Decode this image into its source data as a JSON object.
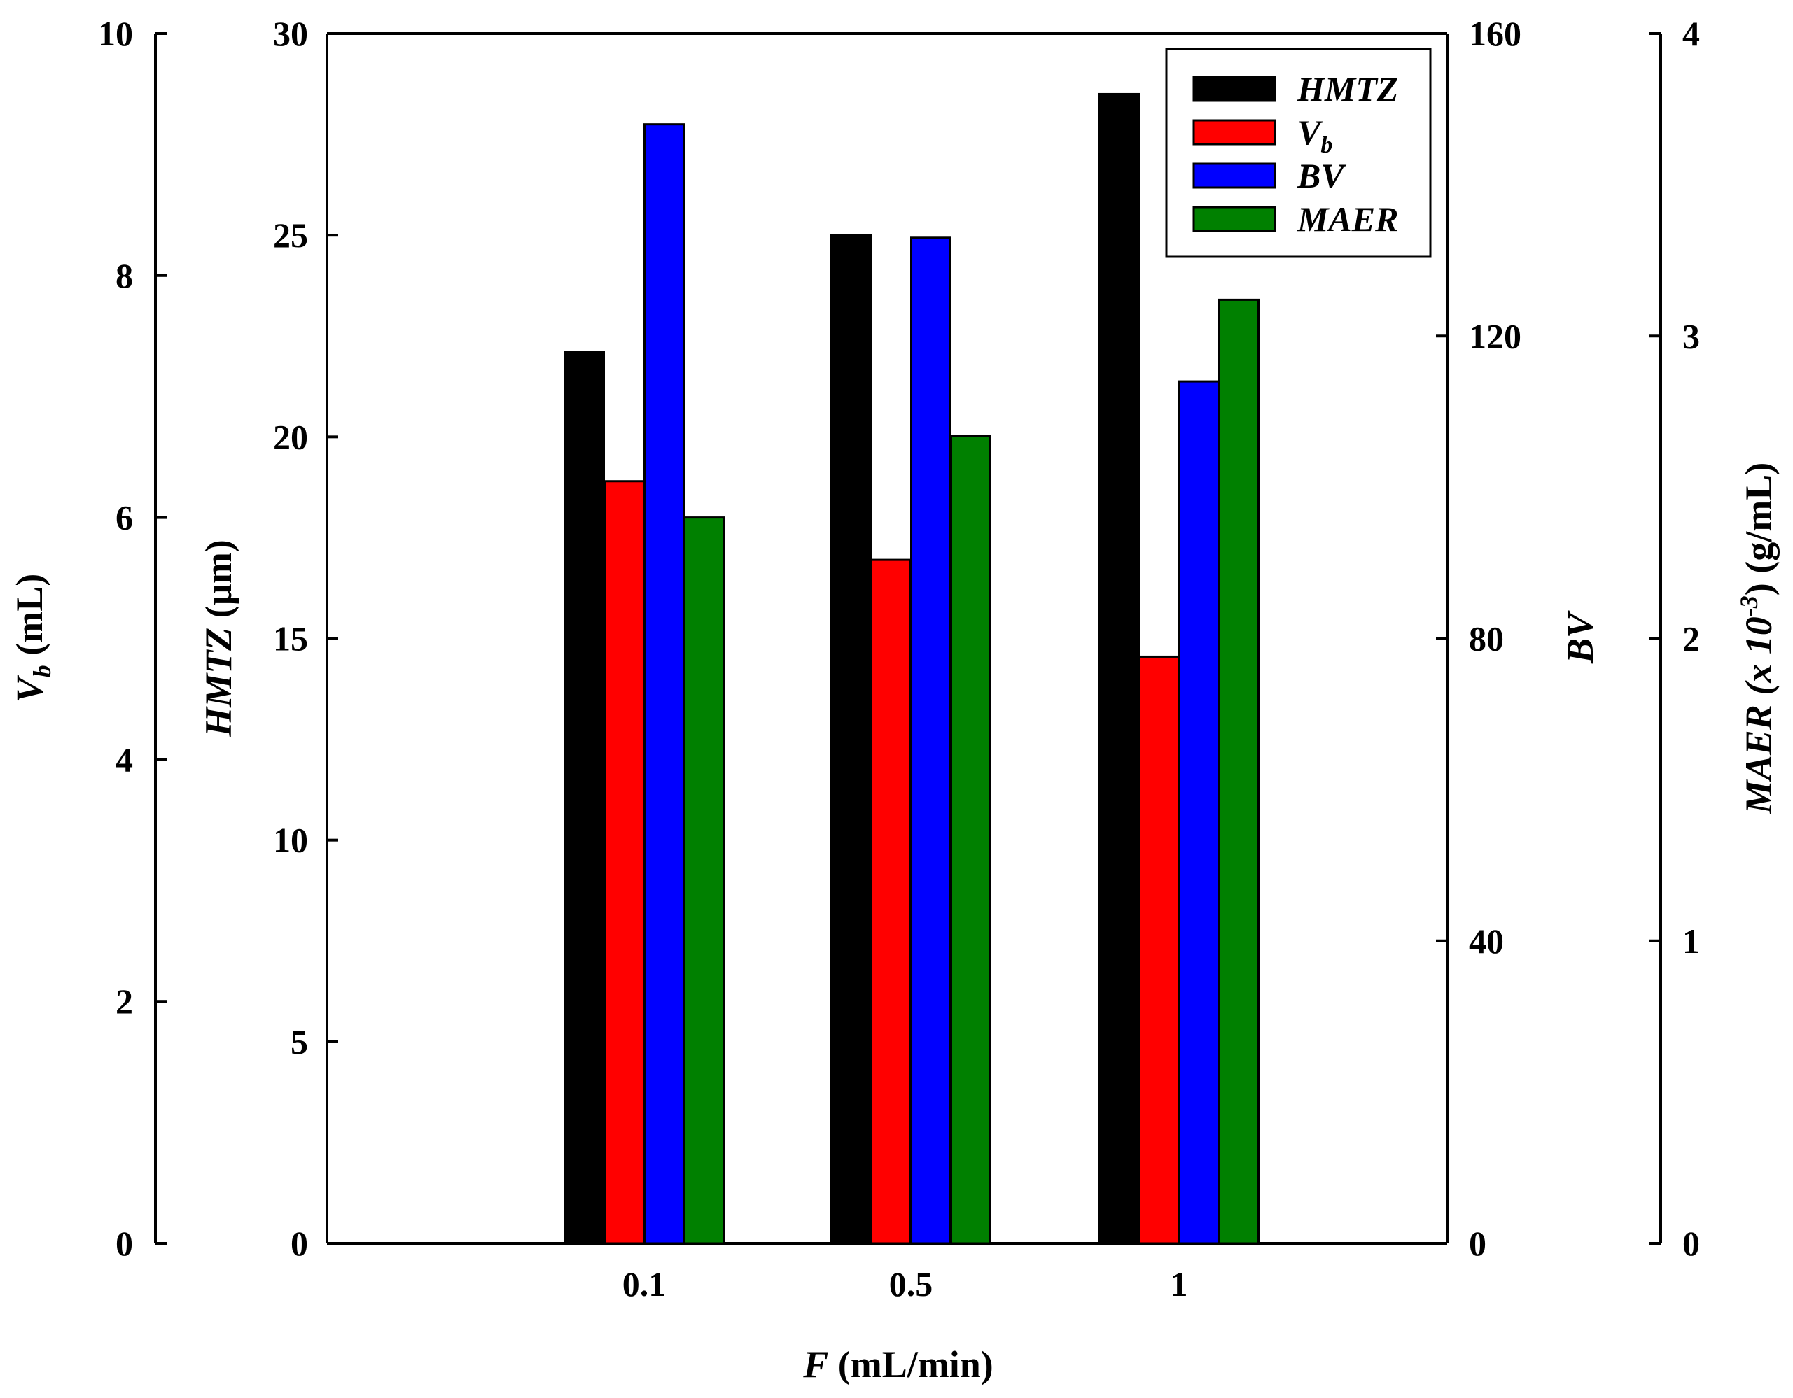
{
  "chart_data": {
    "type": "bar",
    "categories": [
      "0.1",
      "0.5",
      "1"
    ],
    "xlabel": {
      "var": "F",
      "unit": " (mL/min)"
    },
    "series": [
      {
        "key": "HMTZ",
        "name": "HMTZ",
        "axis": "hmtz",
        "color": "#000000",
        "values": [
          22.1,
          25.0,
          28.5
        ]
      },
      {
        "key": "Vb",
        "name": "V",
        "sub": "b",
        "axis": "vb",
        "color": "#ff0000",
        "values": [
          6.3,
          5.65,
          4.85
        ]
      },
      {
        "key": "BV",
        "name": "BV",
        "axis": "bv",
        "color": "#0000ff",
        "values": [
          148,
          133,
          114
        ]
      },
      {
        "key": "MAER",
        "name": "MAER",
        "axis": "maer",
        "color": "#008000",
        "values": [
          2.4,
          2.67,
          3.12
        ]
      }
    ],
    "axes": {
      "vb": {
        "label": "V",
        "sub": "b",
        "unit": " (mL)",
        "ylim": [
          0,
          10
        ],
        "ticks": [
          "0",
          "2",
          "4",
          "6",
          "8",
          "10"
        ]
      },
      "hmtz": {
        "label": "HMTZ",
        "unit": " (µm)",
        "ylim": [
          0,
          30
        ],
        "ticks": [
          "0",
          "5",
          "10",
          "15",
          "20",
          "25",
          "30"
        ]
      },
      "bv": {
        "label": "BV",
        "unit": "",
        "ylim": [
          0,
          160
        ],
        "ticks": [
          "0",
          "40",
          "80",
          "120",
          "160"
        ]
      },
      "maer": {
        "label": "MAER",
        "mid": " (x 10",
        "sup": "-3",
        "unit": ") (g/mL)",
        "ylim": [
          0,
          4
        ],
        "ticks": [
          "0",
          "1",
          "2",
          "3",
          "4"
        ]
      }
    },
    "legend": {
      "position": "top-right"
    }
  }
}
